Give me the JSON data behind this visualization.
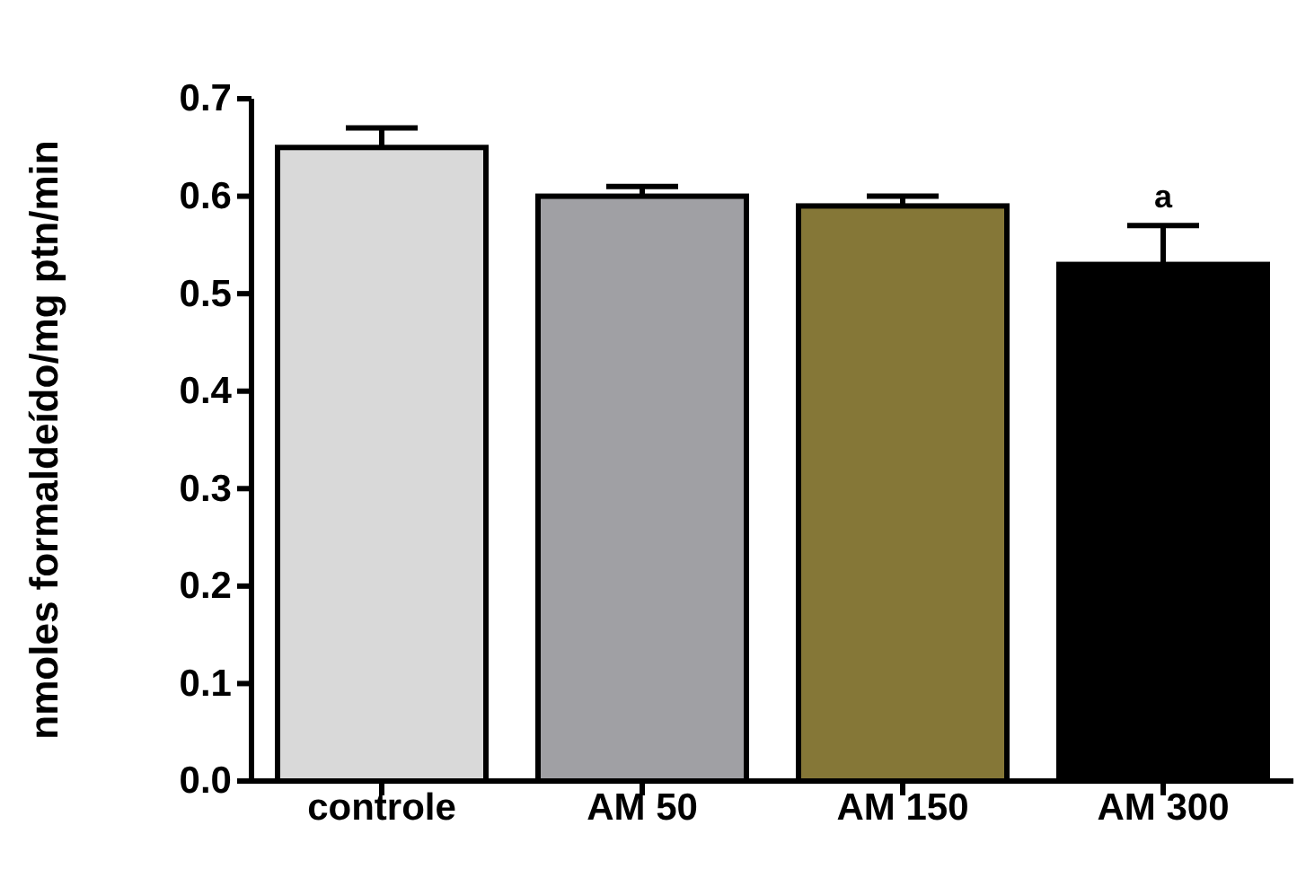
{
  "chart_data": {
    "type": "bar",
    "ylabel": "nmoles formaldeído/mg ptn/min",
    "categories": [
      "controle",
      "AM 50",
      "AM 150",
      "AM 300"
    ],
    "values": [
      0.65,
      0.6,
      0.59,
      0.53
    ],
    "colors": [
      "#d9d9d9",
      "#a0a0a4",
      "#857737",
      "#000000"
    ],
    "errors": [
      [
        0.65,
        0.67
      ],
      [
        0.6,
        0.61
      ],
      [
        0.59,
        0.6
      ],
      [
        0.53,
        0.57
      ]
    ],
    "annotations": [
      {
        "text": "a",
        "x": "AM 300",
        "y": 0.57
      }
    ],
    "ylim": [
      0,
      0.7
    ],
    "yticks": [
      {
        "value": 0,
        "label": "0.0"
      },
      {
        "value": 0.1,
        "label": "0.1"
      },
      {
        "value": 0.2,
        "label": "0.2"
      },
      {
        "value": 0.3,
        "label": "0.3"
      },
      {
        "value": 0.4,
        "label": "0.4"
      },
      {
        "value": 0.5,
        "label": "0.5"
      },
      {
        "value": 0.6,
        "label": "0.6"
      },
      {
        "value": 0.7,
        "label": "0.7"
      }
    ],
    "grid": false
  }
}
